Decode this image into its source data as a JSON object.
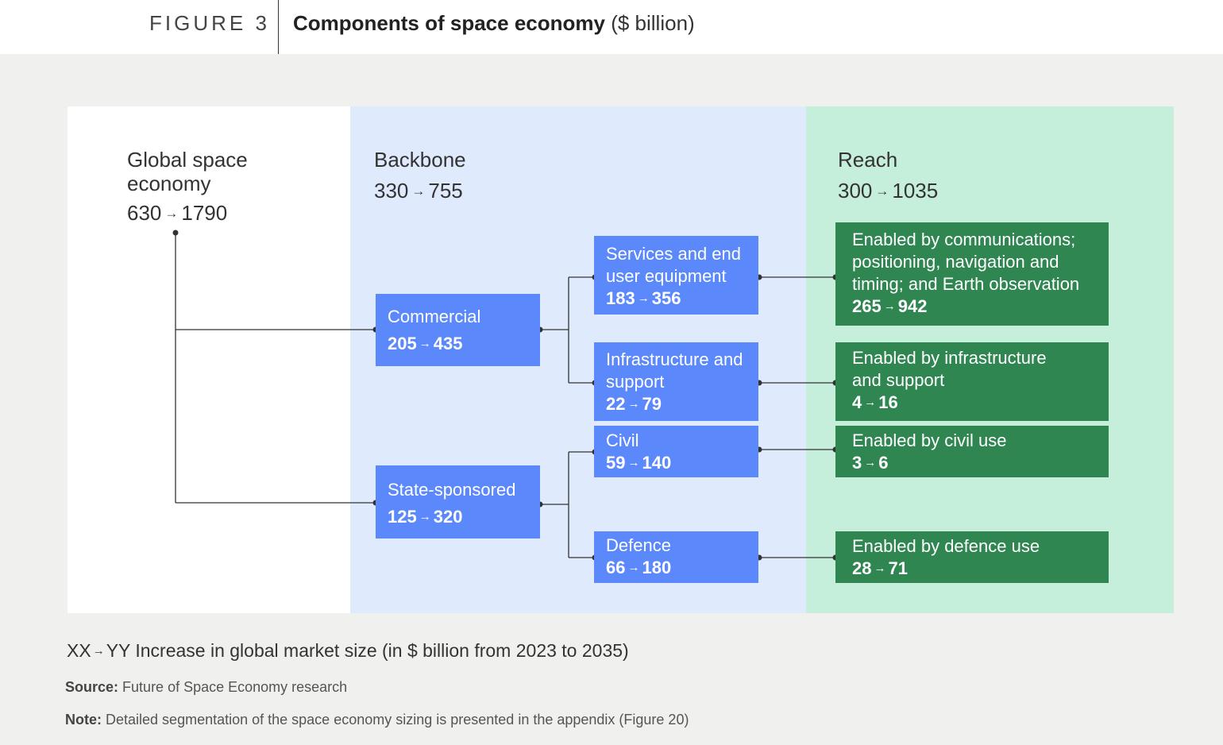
{
  "figure": {
    "label": "FIGURE 3",
    "title": "Components of space economy",
    "unit": "($ billion)"
  },
  "arrow_glyph": "→",
  "global": {
    "title_line1": "Global space",
    "title_line2": "economy",
    "from": "630",
    "to": "1790"
  },
  "backbone": {
    "title": "Backbone",
    "from": "330",
    "to": "755"
  },
  "reach": {
    "title": "Reach",
    "from": "300",
    "to": "1035"
  },
  "segments": {
    "commercial": {
      "label": "Commercial",
      "from": "205",
      "to": "435"
    },
    "state": {
      "label": "State-sponsored",
      "from": "125",
      "to": "320"
    }
  },
  "backbone_items": {
    "services": {
      "line1": "Services and end",
      "line2": "user equipment",
      "from": "183",
      "to": "356"
    },
    "infrastructure": {
      "line1": "Infrastructure and",
      "line2": "support",
      "from": "22",
      "to": "79"
    },
    "civil": {
      "line1": "Civil",
      "from": "59",
      "to": "140"
    },
    "defence": {
      "line1": "Defence",
      "from": "66",
      "to": "180"
    }
  },
  "reach_items": {
    "comms": {
      "line1": "Enabled by communications;",
      "line2": "positioning, navigation and",
      "line3": "timing; and Earth observation",
      "from": "265",
      "to": "942"
    },
    "infra": {
      "line1": "Enabled by infrastructure",
      "line2": "and support",
      "from": "4",
      "to": "16"
    },
    "civil": {
      "line1": "Enabled by civil use",
      "from": "3",
      "to": "6"
    },
    "defence": {
      "line1": "Enabled by defence use",
      "from": "28",
      "to": "71"
    }
  },
  "legend": {
    "xx": "XX",
    "yy": "YY",
    "text": "Increase in global market size (in $ billion from 2023 to 2035)"
  },
  "source": {
    "label": "Source:",
    "text": "Future of Space Economy research"
  },
  "note": {
    "label": "Note:",
    "text": "Detailed segmentation of the space economy sizing is presented in the appendix (Figure 20)"
  },
  "colors": {
    "blue_box": "#5b88fb",
    "green_box": "#2f8651",
    "blue_panel": "#dfeafc",
    "green_panel": "#c5eedb"
  }
}
